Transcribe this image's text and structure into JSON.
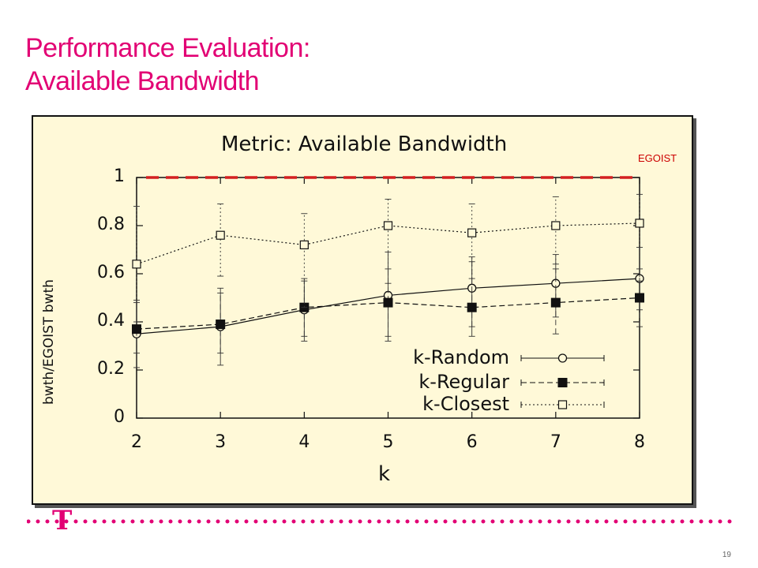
{
  "slide": {
    "title_line1": "Performance Evaluation:",
    "title_line2": "Available Bandwidth",
    "page_number": "19",
    "logo_text": "T",
    "brand_color": "#e20074"
  },
  "chart_data": {
    "type": "line",
    "title": "Metric: Available Bandwidth",
    "xlabel": "k",
    "ylabel": "bwth/EGOIST bwth",
    "x": [
      2,
      3,
      4,
      5,
      6,
      7,
      8
    ],
    "xlim": [
      2,
      8
    ],
    "ylim": [
      0,
      1
    ],
    "x_ticks": [
      "2",
      "3",
      "4",
      "5",
      "6",
      "7",
      "8"
    ],
    "y_ticks": [
      "0",
      "0.2",
      "0.4",
      "0.6",
      "0.8",
      "1"
    ],
    "grid": false,
    "legend_position": "bottom-right",
    "series": [
      {
        "name": "k-Random",
        "marker": "open-circle",
        "line": "solid",
        "values": [
          0.35,
          0.38,
          0.45,
          0.51,
          0.54,
          0.56,
          0.58
        ],
        "err_low": [
          0.21,
          0.22,
          0.32,
          0.32,
          0.34,
          0.42,
          0.45
        ],
        "err_high": [
          0.49,
          0.54,
          0.58,
          0.69,
          0.67,
          0.68,
          0.71
        ]
      },
      {
        "name": "k-Regular",
        "marker": "filled-square",
        "line": "dashed",
        "values": [
          0.37,
          0.39,
          0.46,
          0.48,
          0.46,
          0.48,
          0.5
        ],
        "err_low": [
          0.27,
          0.27,
          0.34,
          0.34,
          0.38,
          0.35,
          0.38
        ],
        "err_high": [
          0.48,
          0.52,
          0.57,
          0.62,
          0.65,
          0.62,
          0.62
        ]
      },
      {
        "name": "k-Closest",
        "marker": "open-square",
        "line": "dotted",
        "values": [
          0.64,
          0.76,
          0.72,
          0.8,
          0.77,
          0.8,
          0.81
        ],
        "err_low": [
          0.4,
          0.59,
          0.46,
          0.56,
          0.58,
          0.64,
          0.57
        ],
        "err_high": [
          0.88,
          0.89,
          0.85,
          0.91,
          0.89,
          0.92,
          0.93
        ]
      }
    ],
    "reference_line": {
      "label": "EGOIST",
      "value": 1,
      "color": "#d42020",
      "style": "dashed"
    }
  }
}
